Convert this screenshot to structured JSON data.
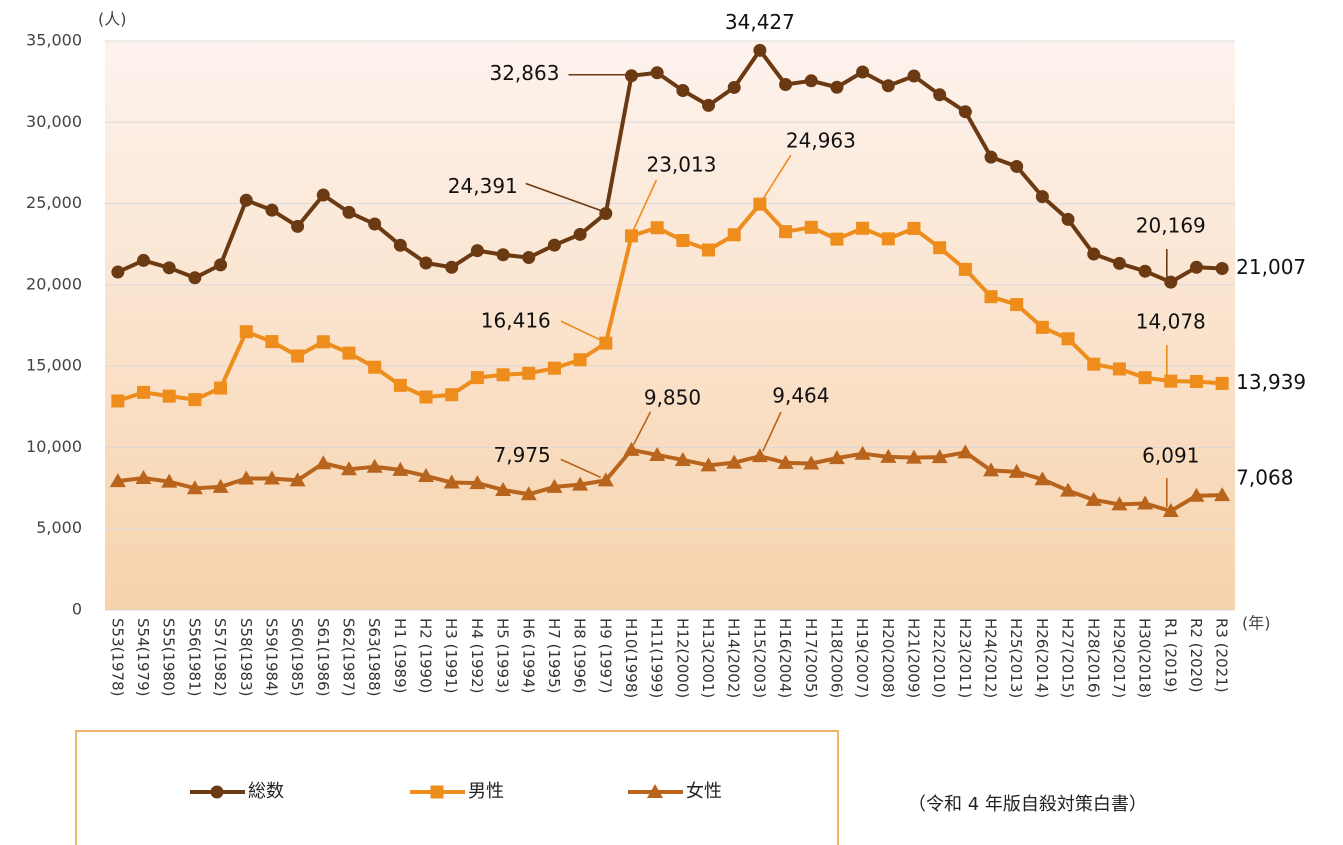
{
  "chart_data": {
    "type": "line",
    "y_unit": "(人)",
    "x_unit": "(年)",
    "source": "（令和 4 年版自殺対策白書）",
    "categories": [
      "S53(1978)",
      "S54(1979)",
      "S55(1980)",
      "S56(1981)",
      "S57(1982)",
      "S58(1983)",
      "S59(1984)",
      "S60(1985)",
      "S61(1986)",
      "S62(1987)",
      "S63(1988)",
      "H1 (1989)",
      "H2 (1990)",
      "H3 (1991)",
      "H4 (1992)",
      "H5 (1993)",
      "H6 (1994)",
      "H7 (1995)",
      "H8 (1996)",
      "H9 (1997)",
      "H10(1998)",
      "H11(1999)",
      "H12(2000)",
      "H13(2001)",
      "H14(2002)",
      "H15(2003)",
      "H16(2004)",
      "H17(2005)",
      "H18(2006)",
      "H19(2007)",
      "H20(2008)",
      "H21(2009)",
      "H22(2010)",
      "H23(2011)",
      "H24(2012)",
      "H25(2013)",
      "H26(2014)",
      "H27(2015)",
      "H28(2016)",
      "H29(2017)",
      "H30(2018)",
      "R1 (2019)",
      "R2 (2020)",
      "R3 (2021)"
    ],
    "series": [
      {
        "name": "総数",
        "color": "#6b3a12",
        "marker": "circle",
        "values": [
          20788,
          21503,
          21048,
          20434,
          21228,
          25202,
          24596,
          23599,
          25524,
          24460,
          23742,
          22436,
          21346,
          21084,
          22104,
          21851,
          21679,
          22445,
          23104,
          24391,
          32863,
          33048,
          31957,
          31042,
          32143,
          34427,
          32325,
          32552,
          32155,
          33093,
          32249,
          32845,
          31690,
          30651,
          27858,
          27283,
          25427,
          24025,
          21897,
          21321,
          20840,
          20169,
          21081,
          21007
        ],
        "value_labels": [
          null,
          null,
          null,
          null,
          null,
          null,
          null,
          null,
          null,
          null,
          null,
          null,
          null,
          null,
          null,
          null,
          null,
          null,
          null,
          "24,391",
          "32,863",
          null,
          null,
          null,
          null,
          "34,427",
          null,
          null,
          null,
          null,
          null,
          null,
          null,
          null,
          null,
          null,
          null,
          null,
          null,
          null,
          null,
          "20,169",
          null,
          "21,007"
        ]
      },
      {
        "name": "男性",
        "color": "#ee8c1c",
        "marker": "square",
        "values": [
          12859,
          13386,
          13155,
          12942,
          13654,
          17116,
          16508,
          15624,
          16497,
          15802,
          14934,
          13818,
          13102,
          13242,
          14296,
          14468,
          14560,
          14874,
          15393,
          16416,
          23013,
          23512,
          22727,
          22144,
          23080,
          24963,
          23272,
          23540,
          22813,
          23478,
          22831,
          23472,
          22283,
          20955,
          19273,
          18787,
          17386,
          16681,
          15121,
          14826,
          14290,
          14078,
          14055,
          13939
        ],
        "value_labels": [
          null,
          null,
          null,
          null,
          null,
          null,
          null,
          null,
          null,
          null,
          null,
          null,
          null,
          null,
          null,
          null,
          null,
          null,
          null,
          "16,416",
          "23,013",
          null,
          null,
          null,
          null,
          "24,963",
          null,
          null,
          null,
          null,
          null,
          null,
          null,
          null,
          null,
          null,
          null,
          null,
          null,
          null,
          null,
          "14,078",
          null,
          "13,939"
        ]
      },
      {
        "name": "女性",
        "color": "#b9641c",
        "marker": "triangle",
        "values": [
          7929,
          8117,
          7893,
          7492,
          7574,
          8086,
          8088,
          7975,
          9027,
          8658,
          8808,
          8618,
          8244,
          7842,
          7808,
          7383,
          7119,
          7571,
          7711,
          7975,
          9850,
          9536,
          9230,
          8898,
          9063,
          9464,
          9053,
          9012,
          9342,
          9615,
          9418,
          9373,
          9407,
          9696,
          8585,
          8496,
          8041,
          7344,
          6776,
          6495,
          6550,
          6091,
          7026,
          7068
        ],
        "value_labels": [
          null,
          null,
          null,
          null,
          null,
          null,
          null,
          null,
          null,
          null,
          null,
          null,
          null,
          null,
          null,
          null,
          null,
          null,
          null,
          "7,975",
          "9,850",
          null,
          null,
          null,
          null,
          "9,464",
          null,
          null,
          null,
          null,
          null,
          null,
          null,
          null,
          null,
          null,
          null,
          null,
          null,
          null,
          null,
          "6,091",
          null,
          "7,068"
        ]
      }
    ],
    "ylim": [
      0,
      35000
    ],
    "yticks": [
      0,
      {
        "value": 5000,
        "label": "5,000"
      },
      {
        "value": 10000,
        "label": "10,000"
      },
      {
        "value": 15000,
        "label": "15,000"
      },
      {
        "value": 20000,
        "label": "20,000"
      },
      {
        "value": 25000,
        "label": "25,000"
      },
      {
        "value": 30000,
        "label": "30,000"
      },
      {
        "value": 35000,
        "label": "35,000"
      }
    ],
    "grid": true
  }
}
